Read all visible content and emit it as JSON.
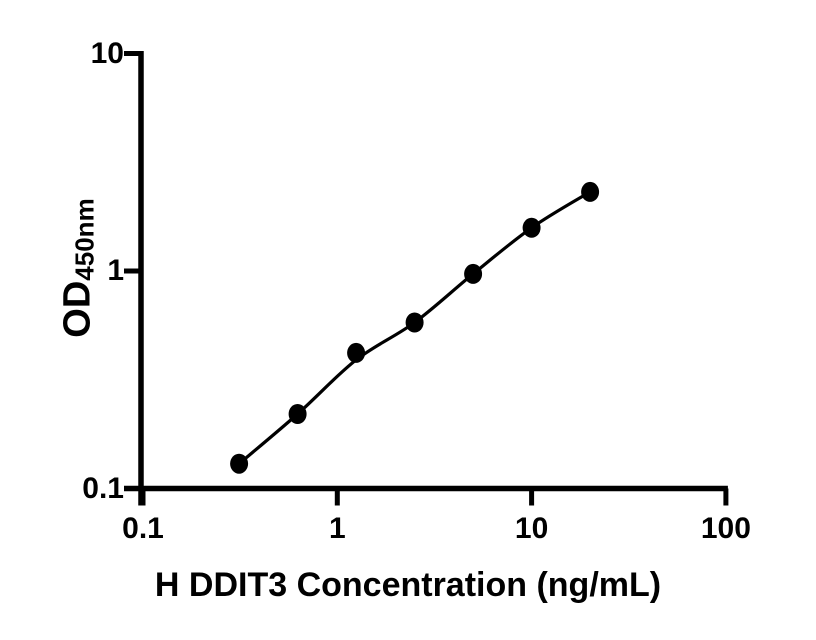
{
  "figure": {
    "background_color": "#ffffff",
    "foreground_color": "#000000"
  },
  "chart_data": {
    "type": "scatter",
    "subtype": "standard-curve-with-fit-line",
    "title": "",
    "xlabel": "H DDIT3 Concentration (ng/mL)",
    "ylabel_main": "OD",
    "ylabel_sub": "450nm",
    "x_scale": "log",
    "y_scale": "log",
    "xlim": [
      0.1,
      100
    ],
    "ylim": [
      0.1,
      10
    ],
    "x_ticks": [
      {
        "value": 0.1,
        "label": "0.1"
      },
      {
        "value": 1,
        "label": "1"
      },
      {
        "value": 10,
        "label": "10"
      },
      {
        "value": 100,
        "label": "100"
      }
    ],
    "y_ticks": [
      {
        "value": 0.1,
        "label": "0.1"
      },
      {
        "value": 1,
        "label": "1"
      },
      {
        "value": 10,
        "label": "10"
      }
    ],
    "points": [
      {
        "x": 0.3125,
        "y": 0.13
      },
      {
        "x": 0.625,
        "y": 0.22
      },
      {
        "x": 1.25,
        "y": 0.42
      },
      {
        "x": 2.5,
        "y": 0.58
      },
      {
        "x": 5,
        "y": 0.97
      },
      {
        "x": 10,
        "y": 1.58
      },
      {
        "x": 20,
        "y": 2.31
      }
    ],
    "fit_line": [
      {
        "x": 0.3125,
        "y": 0.13
      },
      {
        "x": 0.625,
        "y": 0.22
      },
      {
        "x": 1.25,
        "y": 0.39
      },
      {
        "x": 2.5,
        "y": 0.58
      },
      {
        "x": 5,
        "y": 0.97
      },
      {
        "x": 10,
        "y": 1.58
      },
      {
        "x": 20,
        "y": 2.31
      }
    ],
    "marker_color": "#000000",
    "line_color": "#000000",
    "axis_color": "#000000",
    "grid": false,
    "legend_position": "none"
  }
}
